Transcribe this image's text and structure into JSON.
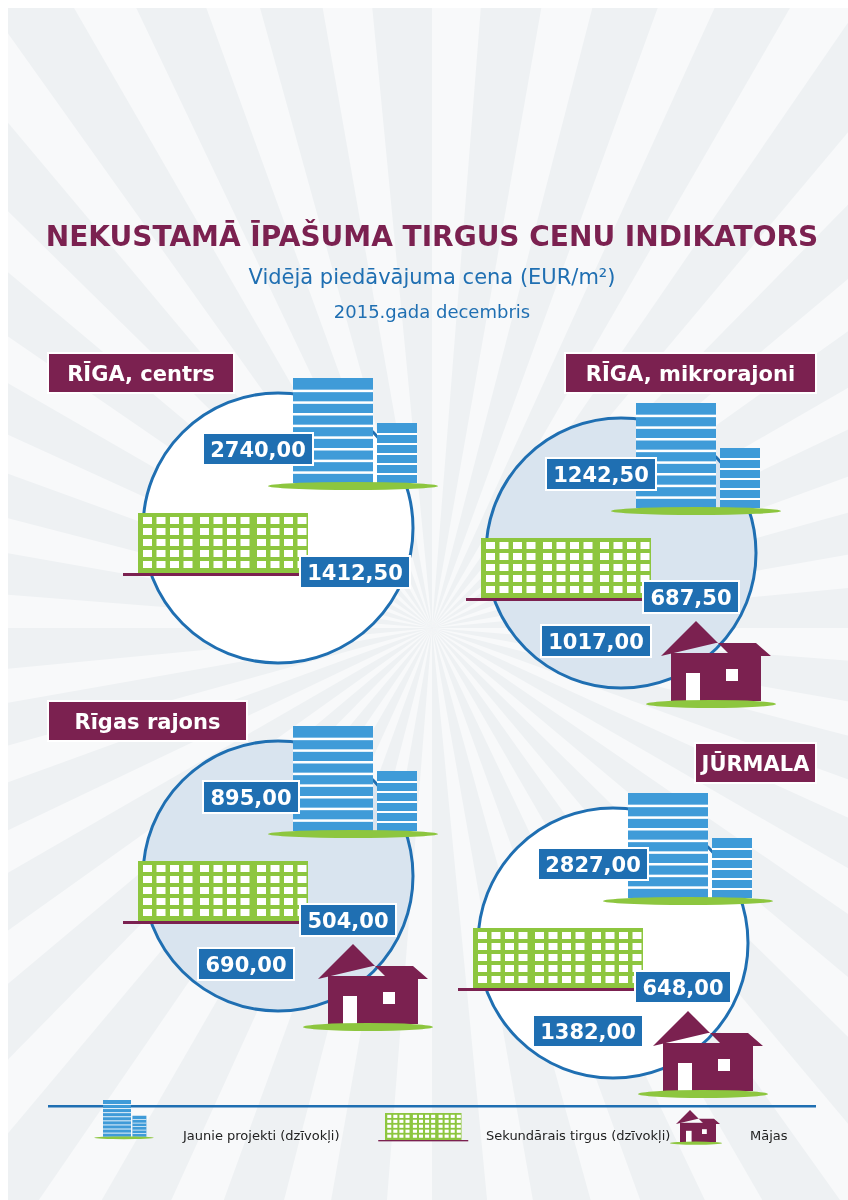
{
  "chart_data": [
    {
      "type": "other",
      "title": "NEKUSTAMĀ ĪPAŠUMA TIRGUS CENU INDIKATORS",
      "subtitle": "Vidējā piedāvājuma cena (EUR/m²)",
      "annotations": [
        "2015.gada decembris"
      ]
    },
    {
      "type": "other",
      "title": "RĪGA, centrs",
      "categories": [
        null,
        null
      ],
      "values": [
        2740,
        1412.5
      ],
      "value_labels": [
        "2740,00",
        "1412,50"
      ],
      "colors": [
        "#3f9bd8",
        "#8dc63f"
      ]
    },
    {
      "type": "other",
      "title": "RĪGA, mikrorajoni",
      "categories": [
        null,
        null,
        null
      ],
      "values": [
        1242.5,
        687.5,
        1017
      ],
      "value_labels": [
        "1242,50",
        "687,50",
        "1017,00"
      ],
      "colors": [
        "#3f9bd8",
        "#8dc63f",
        "#7b2150"
      ]
    },
    {
      "type": "other",
      "title": "Rīgas  rajons",
      "categories": [
        null,
        null,
        null
      ],
      "values": [
        895,
        504,
        690
      ],
      "value_labels": [
        "895,00",
        "504,00",
        "690,00"
      ],
      "colors": [
        "#3f9bd8",
        "#8dc63f",
        "#7b2150"
      ]
    },
    {
      "type": "other",
      "title": "JŪRMALA",
      "categories": [
        null,
        null,
        null
      ],
      "values": [
        2827,
        648,
        1382
      ],
      "value_labels": [
        "2827,00",
        "648,00",
        "1382,00"
      ],
      "colors": [
        "#3f9bd8",
        "#8dc63f",
        "#7b2150"
      ]
    },
    {
      "type": "other",
      "categories": [
        "Jaunie projekti (dzīvokļi)",
        "Sekundārais tirgus (dzīvokļi)",
        "Mājas"
      ],
      "colors": [
        "#3f9bd8",
        "#8dc63f",
        "#7b2150"
      ]
    }
  ]
}
